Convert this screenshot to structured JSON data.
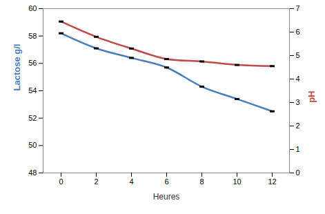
{
  "chart_data": {
    "type": "line",
    "x_label": "Heures",
    "categories": [
      "0",
      "2",
      "4",
      "6",
      "8",
      "10",
      "12"
    ],
    "y_label": "Lactose g/l",
    "ylim": [
      48,
      60
    ],
    "yticks": [
      48,
      50,
      52,
      54,
      56,
      58,
      60
    ],
    "y2_label": "pH",
    "y2lim": [
      0,
      7
    ],
    "y2ticks": [
      0,
      1,
      2,
      3,
      4,
      5,
      6,
      7
    ],
    "grid": false,
    "series": [
      {
        "name": "Lactose g/l",
        "color": "#4a7ebb",
        "marker": "dash",
        "values": [
          58.2,
          57.1,
          56.4,
          55.7,
          54.3,
          53.4,
          52.5
        ]
      },
      {
        "name": "pH",
        "color": "#be4b48",
        "marker": "dash",
        "axis": "y2",
        "values": [
          6.45,
          5.8,
          5.3,
          4.85,
          4.75,
          4.6,
          4.55
        ]
      }
    ]
  }
}
